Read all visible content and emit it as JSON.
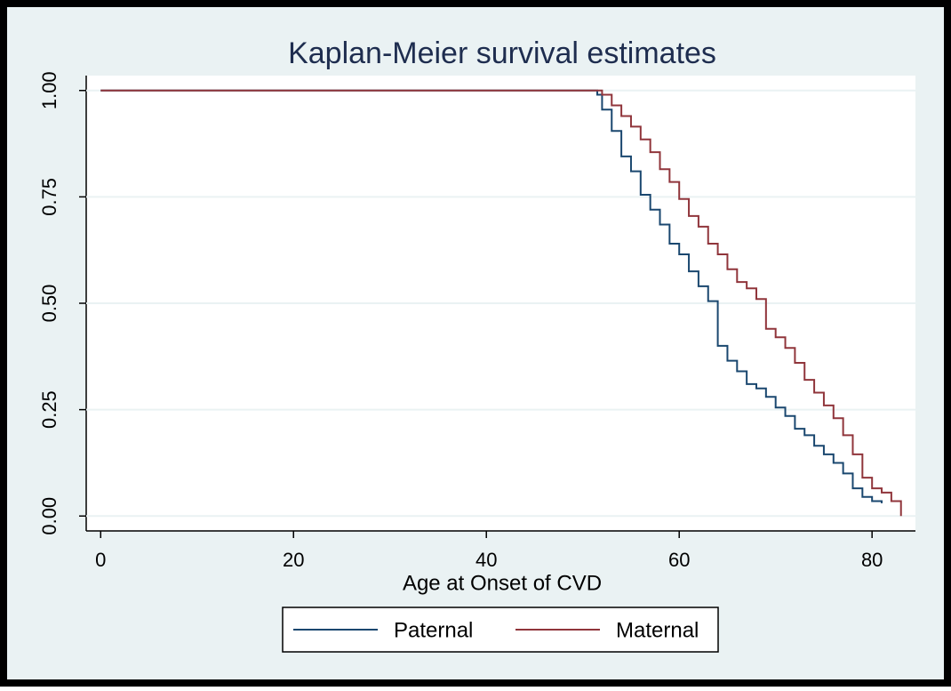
{
  "chart_data": {
    "type": "line",
    "step": "post",
    "title": "Kaplan-Meier survival estimates",
    "x_label": "Age at Onset of CVD",
    "xlim": [
      -1.5,
      84.5
    ],
    "xticks": [
      0,
      20,
      40,
      60,
      80
    ],
    "ylim": [
      -0.035,
      1.035
    ],
    "yticks": [
      {
        "value": 0,
        "label": "0.00"
      },
      {
        "value": 0.25,
        "label": "0.25"
      },
      {
        "value": 0.5,
        "label": "0.50"
      },
      {
        "value": 0.75,
        "label": "0.75"
      },
      {
        "value": 1,
        "label": "1.00"
      }
    ],
    "grid": true,
    "legend_position": "bottom",
    "series": [
      {
        "name": "Paternal",
        "color": "#1a476f",
        "x": [
          0,
          51.5,
          52,
          53,
          54,
          55,
          56,
          57,
          58,
          59,
          60,
          61,
          62,
          63,
          64,
          65,
          66,
          67,
          68,
          69,
          70,
          71,
          72,
          73,
          74,
          75,
          76,
          77,
          78,
          79,
          80,
          81
        ],
        "values": [
          1.0,
          0.99,
          0.955,
          0.905,
          0.845,
          0.81,
          0.755,
          0.72,
          0.685,
          0.64,
          0.615,
          0.575,
          0.54,
          0.505,
          0.4,
          0.365,
          0.34,
          0.31,
          0.3,
          0.28,
          0.255,
          0.235,
          0.205,
          0.19,
          0.165,
          0.145,
          0.125,
          0.1,
          0.065,
          0.045,
          0.035,
          0.03
        ]
      },
      {
        "name": "Maternal",
        "color": "#90353b",
        "x": [
          0,
          52,
          53,
          54,
          55,
          56,
          57,
          58,
          59,
          60,
          61,
          62,
          63,
          64,
          65,
          66,
          67,
          68,
          69,
          70,
          71,
          72,
          73,
          74,
          75,
          76,
          77,
          78,
          79,
          80,
          81,
          82,
          83,
          83
        ],
        "values": [
          1.0,
          0.99,
          0.965,
          0.94,
          0.915,
          0.885,
          0.855,
          0.815,
          0.785,
          0.745,
          0.705,
          0.68,
          0.64,
          0.615,
          0.58,
          0.55,
          0.535,
          0.51,
          0.44,
          0.42,
          0.395,
          0.36,
          0.32,
          0.29,
          0.26,
          0.23,
          0.19,
          0.145,
          0.09,
          0.065,
          0.055,
          0.035,
          0.03,
          0.0
        ]
      }
    ]
  }
}
